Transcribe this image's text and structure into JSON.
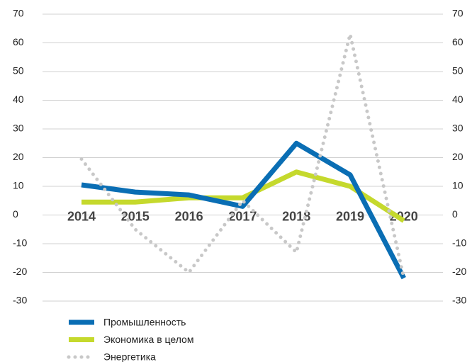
{
  "chart_data": {
    "type": "line",
    "categories": [
      "2014",
      "2015",
      "2016",
      "2017",
      "2018",
      "2019",
      "2020"
    ],
    "series": [
      {
        "name": "Промышленность",
        "color": "#0a6eb4",
        "style": "solid",
        "values": [
          10.5,
          8,
          7,
          3,
          25,
          14,
          -22
        ]
      },
      {
        "name": "Экономика в целом",
        "color": "#c5d92d",
        "style": "solid",
        "values": [
          4.5,
          4.5,
          6,
          6,
          15,
          10,
          -2
        ]
      },
      {
        "name": "Энергетика",
        "color": "#c8c8c8",
        "style": "dotted",
        "values": [
          19.5,
          -5,
          -20,
          5,
          -13,
          63,
          -22
        ]
      }
    ],
    "ylim": [
      -30,
      70
    ],
    "yticks": [
      -30,
      -20,
      -10,
      0,
      10,
      20,
      30,
      40,
      50,
      60,
      70
    ],
    "y2lim": [
      -30,
      70
    ],
    "y2ticks": [
      -30,
      -20,
      -10,
      0,
      10,
      20,
      30,
      40,
      50,
      60,
      70
    ],
    "grid": true,
    "legend": "bottom"
  }
}
